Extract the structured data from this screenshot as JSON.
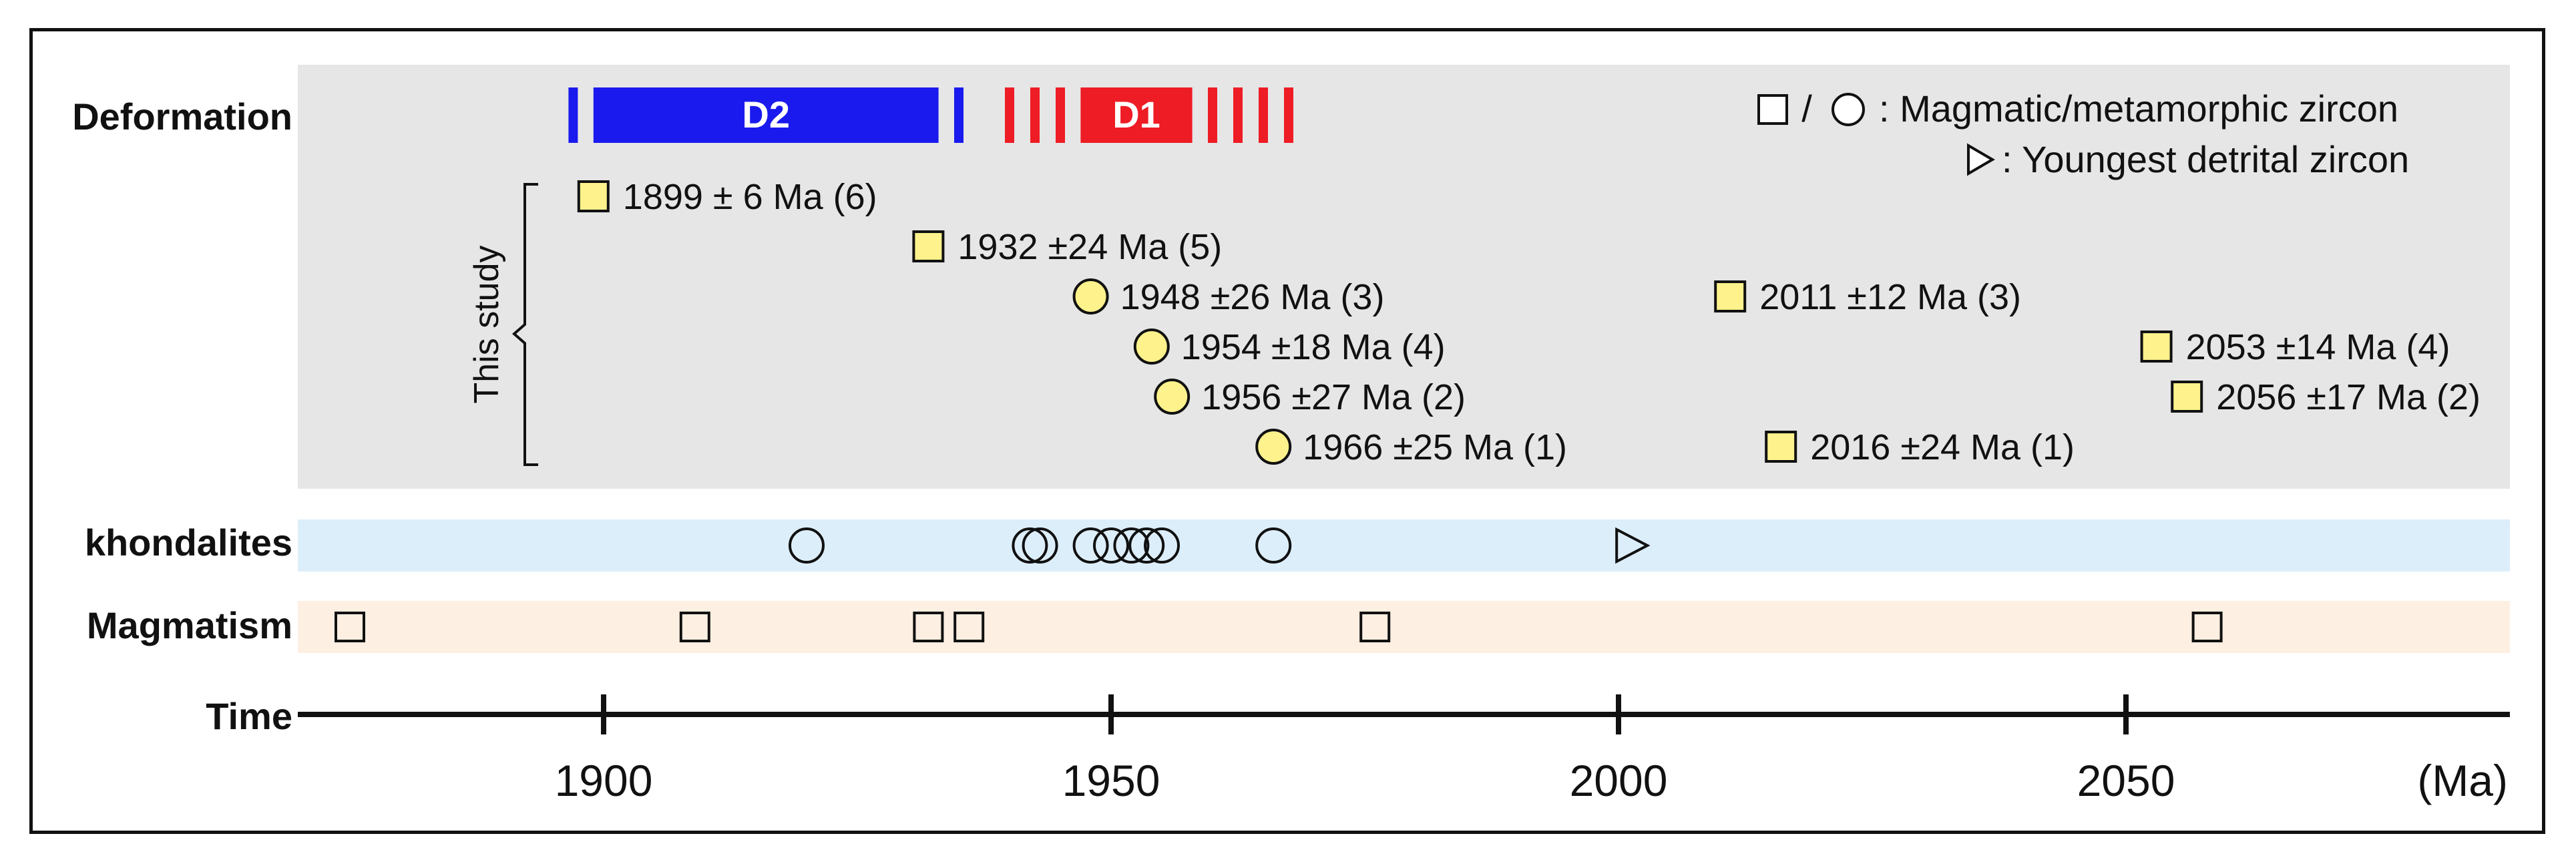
{
  "chart_data": {
    "type": "timeline",
    "row_labels": {
      "deformation": "Deformation",
      "khondalites": "khondalites",
      "magmatism": "Magmatism",
      "time": "Time"
    },
    "bracket_label": "This study",
    "legend": {
      "magmatic_text": ": Magmatic/metamorphic zircon",
      "magmatic_separator": "/",
      "detrital_text": ": Youngest detrital zircon"
    },
    "axis": {
      "unit": "(Ma)",
      "range": [
        1870,
        2088
      ],
      "ticks": [
        1900,
        1950,
        2000,
        2050
      ],
      "tick_labels": [
        "1900",
        "1950",
        "2000",
        "2050"
      ]
    },
    "deformation_phases": [
      {
        "name": "D2",
        "start": 1899,
        "end": 1933,
        "color": "#1a1aee",
        "dashes_before": [
          1897
        ],
        "dashes_after": [
          1935
        ]
      },
      {
        "name": "D1",
        "start": 1947,
        "end": 1958,
        "color": "#ee1c25",
        "dashes_before": [
          1940,
          1942.5,
          1945
        ],
        "dashes_after": [
          1960,
          1962.5,
          1965,
          1967.5
        ]
      }
    ],
    "this_study": [
      {
        "age": 1899,
        "label": "1899 ± 6 Ma (6)",
        "shape": "square",
        "row": 0
      },
      {
        "age": 1932,
        "label": "1932 ±24 Ma (5)",
        "shape": "square",
        "row": 1
      },
      {
        "age": 1948,
        "label": "1948 ±26 Ma (3)",
        "shape": "circle",
        "row": 2
      },
      {
        "age": 2011,
        "label": "2011 ±12 Ma (3)",
        "shape": "square",
        "row": 2
      },
      {
        "age": 1954,
        "label": "1954 ±18 Ma (4)",
        "shape": "circle",
        "row": 3
      },
      {
        "age": 2053,
        "label": "2053 ±14 Ma (4)",
        "shape": "square",
        "row": 3
      },
      {
        "age": 1956,
        "label": "1956 ±27 Ma (2)",
        "shape": "circle",
        "row": 4
      },
      {
        "age": 2056,
        "label": "2056 ±17 Ma (2)",
        "shape": "square",
        "row": 4
      },
      {
        "age": 1966,
        "label": "1966 ±25 Ma (1)",
        "shape": "circle",
        "row": 5
      },
      {
        "age": 2016,
        "label": "2016 ±24 Ma (1)",
        "shape": "square",
        "row": 5
      }
    ],
    "khondalites": {
      "circles": [
        1920,
        1942,
        1943,
        1948,
        1950,
        1952,
        1953.5,
        1955,
        1966
      ],
      "triangles": [
        2001
      ]
    },
    "magmatism": {
      "squares": [
        1875,
        1909,
        1932,
        1936,
        1976,
        2058
      ]
    },
    "colors": {
      "study_panel": "#e6e6e6",
      "khondalite_band": "#ddeefb",
      "magmatism_band": "#fdefe2",
      "marker_fill": "#fdf28c",
      "d2": "#1a1aee",
      "d1": "#ee1c25"
    }
  }
}
